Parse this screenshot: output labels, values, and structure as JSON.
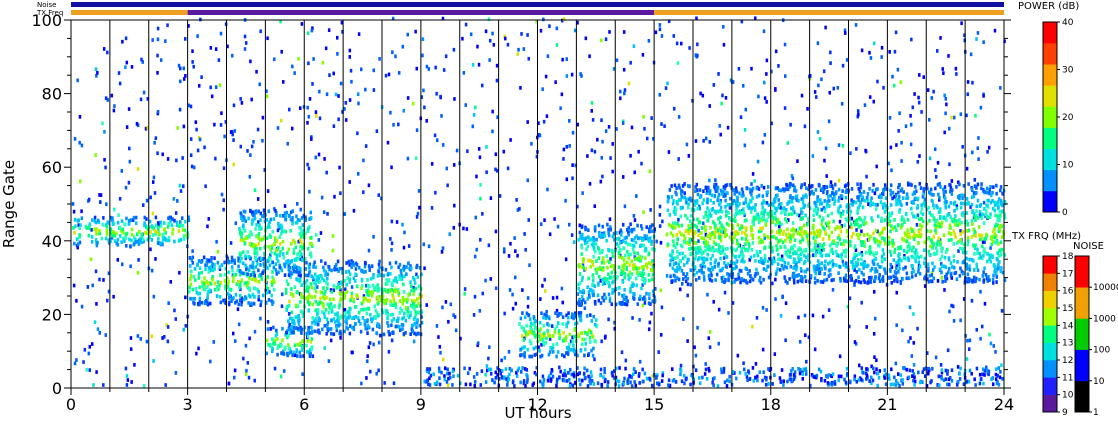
{
  "chart_data": {
    "type": "heatmap",
    "title": "",
    "xlabel": "UT hours",
    "ylabel": "Range Gate",
    "xlim": [
      0,
      24
    ],
    "ylim": [
      0,
      100
    ],
    "x_ticks": [
      "0",
      "3",
      "6",
      "9",
      "12",
      "15",
      "18",
      "21",
      "24"
    ],
    "y_ticks": [
      "0",
      "20",
      "40",
      "60",
      "80",
      "100"
    ],
    "grid": "vertical lines hourly",
    "top_strips": {
      "noise_label": "Noise",
      "txfreq_label": "TX Freq",
      "txfreq_segments": [
        {
          "start": 0,
          "end": 3,
          "color": "#f0a020"
        },
        {
          "start": 3,
          "end": 15,
          "color": "#5a1aa0"
        },
        {
          "start": 15,
          "end": 24,
          "color": "#f0a020"
        }
      ]
    },
    "echo_bands": [
      {
        "t": [
          0.0,
          3.0
        ],
        "gate": [
          38,
          46
        ]
      },
      {
        "t": [
          3.0,
          5.2
        ],
        "gate": [
          22,
          35
        ]
      },
      {
        "t": [
          5.0,
          6.2
        ],
        "gate": [
          8,
          16
        ]
      },
      {
        "t": [
          5.5,
          9.0
        ],
        "gate": [
          14,
          34
        ]
      },
      {
        "t": [
          4.3,
          6.2
        ],
        "gate": [
          30,
          48
        ]
      },
      {
        "t": [
          11.5,
          13.5
        ],
        "gate": [
          8,
          20
        ]
      },
      {
        "t": [
          13.0,
          15.0
        ],
        "gate": [
          22,
          44
        ]
      },
      {
        "t": [
          15.3,
          24.0
        ],
        "gate": [
          28,
          55
        ]
      }
    ],
    "colorbars": [
      {
        "title": "POWER (dB)",
        "ticks": [
          "0",
          "10",
          "20",
          "30",
          "40"
        ],
        "colors": [
          "#0000ff",
          "#0090ff",
          "#00e0e0",
          "#00ff80",
          "#80ff00",
          "#e0e000",
          "#ffa000",
          "#ff4000",
          "#ff0000"
        ]
      },
      {
        "title": "TX FRQ (MHz)",
        "ticks": [
          "9",
          "10",
          "11",
          "12",
          "13",
          "14",
          "15",
          "16",
          "17",
          "18"
        ],
        "colors": [
          "#000000",
          "#5a1aa0",
          "#2020ff",
          "#0090ff",
          "#00e0e0",
          "#00ff80",
          "#a0ff00",
          "#f0d000",
          "#f08000",
          "#ff0000"
        ]
      },
      {
        "title": "NOISE",
        "ticks": [
          "1",
          "10",
          "100",
          "1000",
          "10000"
        ],
        "colors": [
          "#000000",
          "#0000ff",
          "#00cc00",
          "#f0a000",
          "#ff0000"
        ]
      }
    ]
  }
}
